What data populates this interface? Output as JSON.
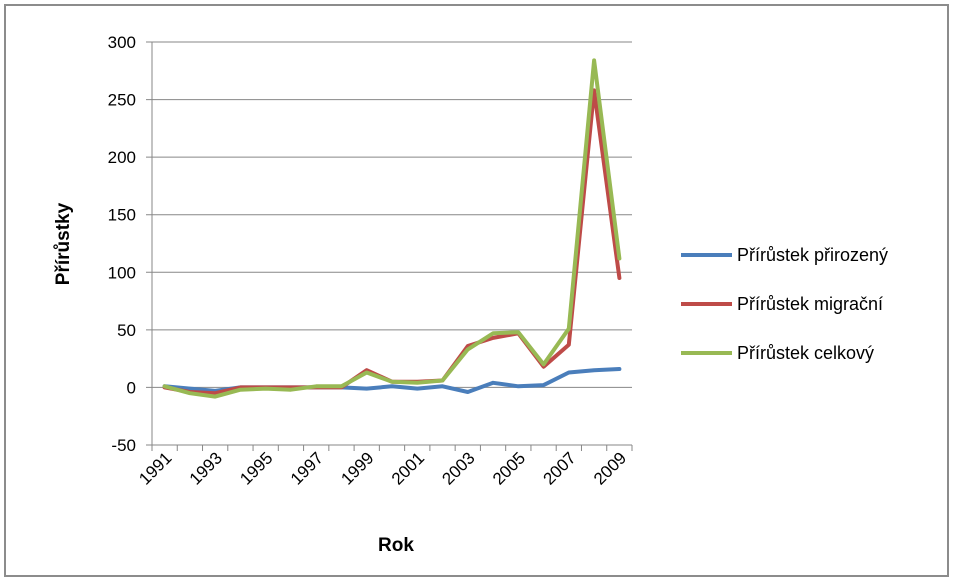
{
  "chart_data": {
    "type": "line",
    "xlabel": "Rok",
    "ylabel": "Přírůstky",
    "ylim": [
      -50,
      300
    ],
    "yticks": [
      -50,
      0,
      50,
      100,
      150,
      200,
      250,
      300
    ],
    "grid": true,
    "legend_position": "right",
    "x": [
      1991,
      1992,
      1993,
      1994,
      1995,
      1996,
      1997,
      1998,
      1999,
      2000,
      2001,
      2002,
      2003,
      2004,
      2005,
      2006,
      2007,
      2008,
      2009
    ],
    "xtick_labels": [
      "1991",
      "1993",
      "1995",
      "1997",
      "1999",
      "2001",
      "2003",
      "2005",
      "2007",
      "2009"
    ],
    "series": [
      {
        "name": "Přírůstek přirozený",
        "color": "#4a7ebb",
        "values": [
          1,
          -1,
          -3,
          0,
          0,
          0,
          0,
          0,
          -1,
          1,
          -1,
          1,
          -4,
          4,
          1,
          2,
          13,
          15,
          16
        ]
      },
      {
        "name": "Přírůstek migrační",
        "color": "#be4b48",
        "values": [
          0,
          -4,
          -5,
          0,
          0,
          0,
          0,
          0,
          15,
          5,
          5,
          6,
          36,
          43,
          47,
          18,
          37,
          258,
          95
        ]
      },
      {
        "name": "Přírůstek celkový",
        "color": "#98b954",
        "values": [
          1,
          -5,
          -8,
          -2,
          -1,
          -2,
          1,
          1,
          13,
          5,
          4,
          6,
          33,
          47,
          48,
          20,
          51,
          284,
          112
        ]
      }
    ]
  }
}
